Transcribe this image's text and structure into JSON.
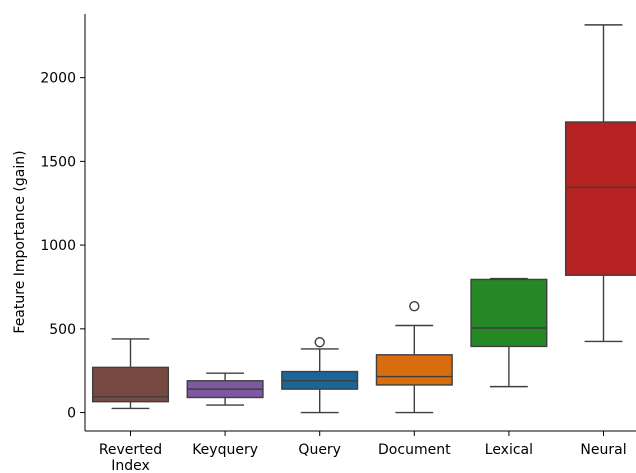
{
  "chart_data": {
    "type": "box",
    "title": "",
    "xlabel": "",
    "ylabel": "Feature Importance (gain)",
    "ylim": [
      -110,
      2380
    ],
    "yticks": [
      0,
      500,
      1000,
      1500,
      2000
    ],
    "grid": false,
    "categories": [
      {
        "label": [
          "Reverted",
          "Index"
        ],
        "color": "#8c564b"
      },
      {
        "label": [
          "Keyquery"
        ],
        "color": "#9467bd"
      },
      {
        "label": [
          "Query"
        ],
        "color": "#1f77b4"
      },
      {
        "label": [
          "Document"
        ],
        "color": "#ff7f0e"
      },
      {
        "label": [
          "Lexical"
        ],
        "color": "#2ca02c"
      },
      {
        "label": [
          "Neural"
        ],
        "color": "#d62728"
      }
    ],
    "boxes": [
      {
        "whisker_low": 25,
        "q1": 65,
        "median": 95,
        "q3": 270,
        "whisker_high": 440,
        "outliers": []
      },
      {
        "whisker_low": 45,
        "q1": 90,
        "median": 140,
        "q3": 190,
        "whisker_high": 235,
        "outliers": []
      },
      {
        "whisker_low": 0,
        "q1": 140,
        "median": 190,
        "q3": 245,
        "whisker_high": 380,
        "outliers": [
          420
        ]
      },
      {
        "whisker_low": 0,
        "q1": 165,
        "median": 215,
        "q3": 345,
        "whisker_high": 520,
        "outliers": [
          635
        ]
      },
      {
        "whisker_low": 155,
        "q1": 395,
        "median": 505,
        "q3": 795,
        "whisker_high": 800,
        "outliers": []
      },
      {
        "whisker_low": 425,
        "q1": 820,
        "median": 1345,
        "q3": 1735,
        "whisker_high": 2315,
        "outliers": []
      }
    ]
  }
}
